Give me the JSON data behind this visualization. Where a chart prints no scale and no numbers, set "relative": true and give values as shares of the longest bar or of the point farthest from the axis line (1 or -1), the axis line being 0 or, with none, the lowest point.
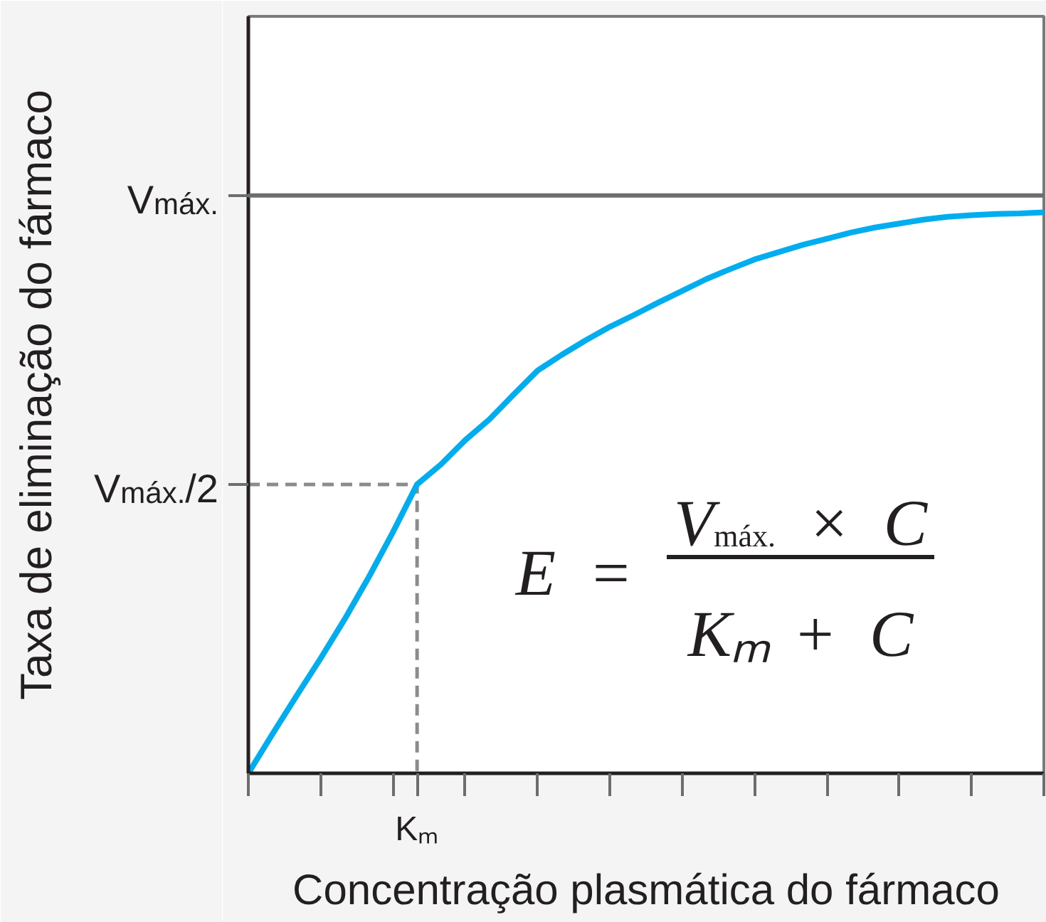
{
  "chart_data": {
    "type": "line",
    "relative": true,
    "xlabel": "Concentração plasmática do fármaco",
    "ylabel": "Taxa de eliminação do fármaco",
    "categories": [
      null,
      null,
      null,
      null,
      null,
      null,
      null,
      null,
      null,
      null,
      null,
      null,
      null,
      null,
      null,
      null,
      null,
      null,
      null,
      null,
      null,
      null,
      null,
      null,
      null,
      null,
      null,
      null,
      null,
      null,
      null,
      null,
      null,
      null
    ],
    "grid": false,
    "series": [
      {
        "color": "#00aeef",
        "values": [
          0,
          0.07,
          0.138,
          0.205,
          0.275,
          0.35,
          0.43,
          0.515,
          0.551,
          0.594,
          0.631,
          0.675,
          0.718,
          0.746,
          0.772,
          0.796,
          0.817,
          0.839,
          0.86,
          0.881,
          0.899,
          0.916,
          0.929,
          0.942,
          0.953,
          0.964,
          0.973,
          0.98,
          0.987,
          0.992,
          0.995,
          0.997,
          0.998,
          1
        ]
      }
    ],
    "ref_lines": [
      {
        "axis": "y",
        "value": 1.03,
        "color": "#6d6d6d",
        "label": "V$_{máx.}$"
      },
      {
        "axis": "y",
        "value": 0.515,
        "color": "#8c8c8c",
        "line_style": "dashed",
        "label": "V$_{máx.}$/2"
      }
    ],
    "annotations": [
      "Kₘ",
      "E =",
      "V$_{máx.}$ × C",
      "Kₘ + C"
    ]
  }
}
